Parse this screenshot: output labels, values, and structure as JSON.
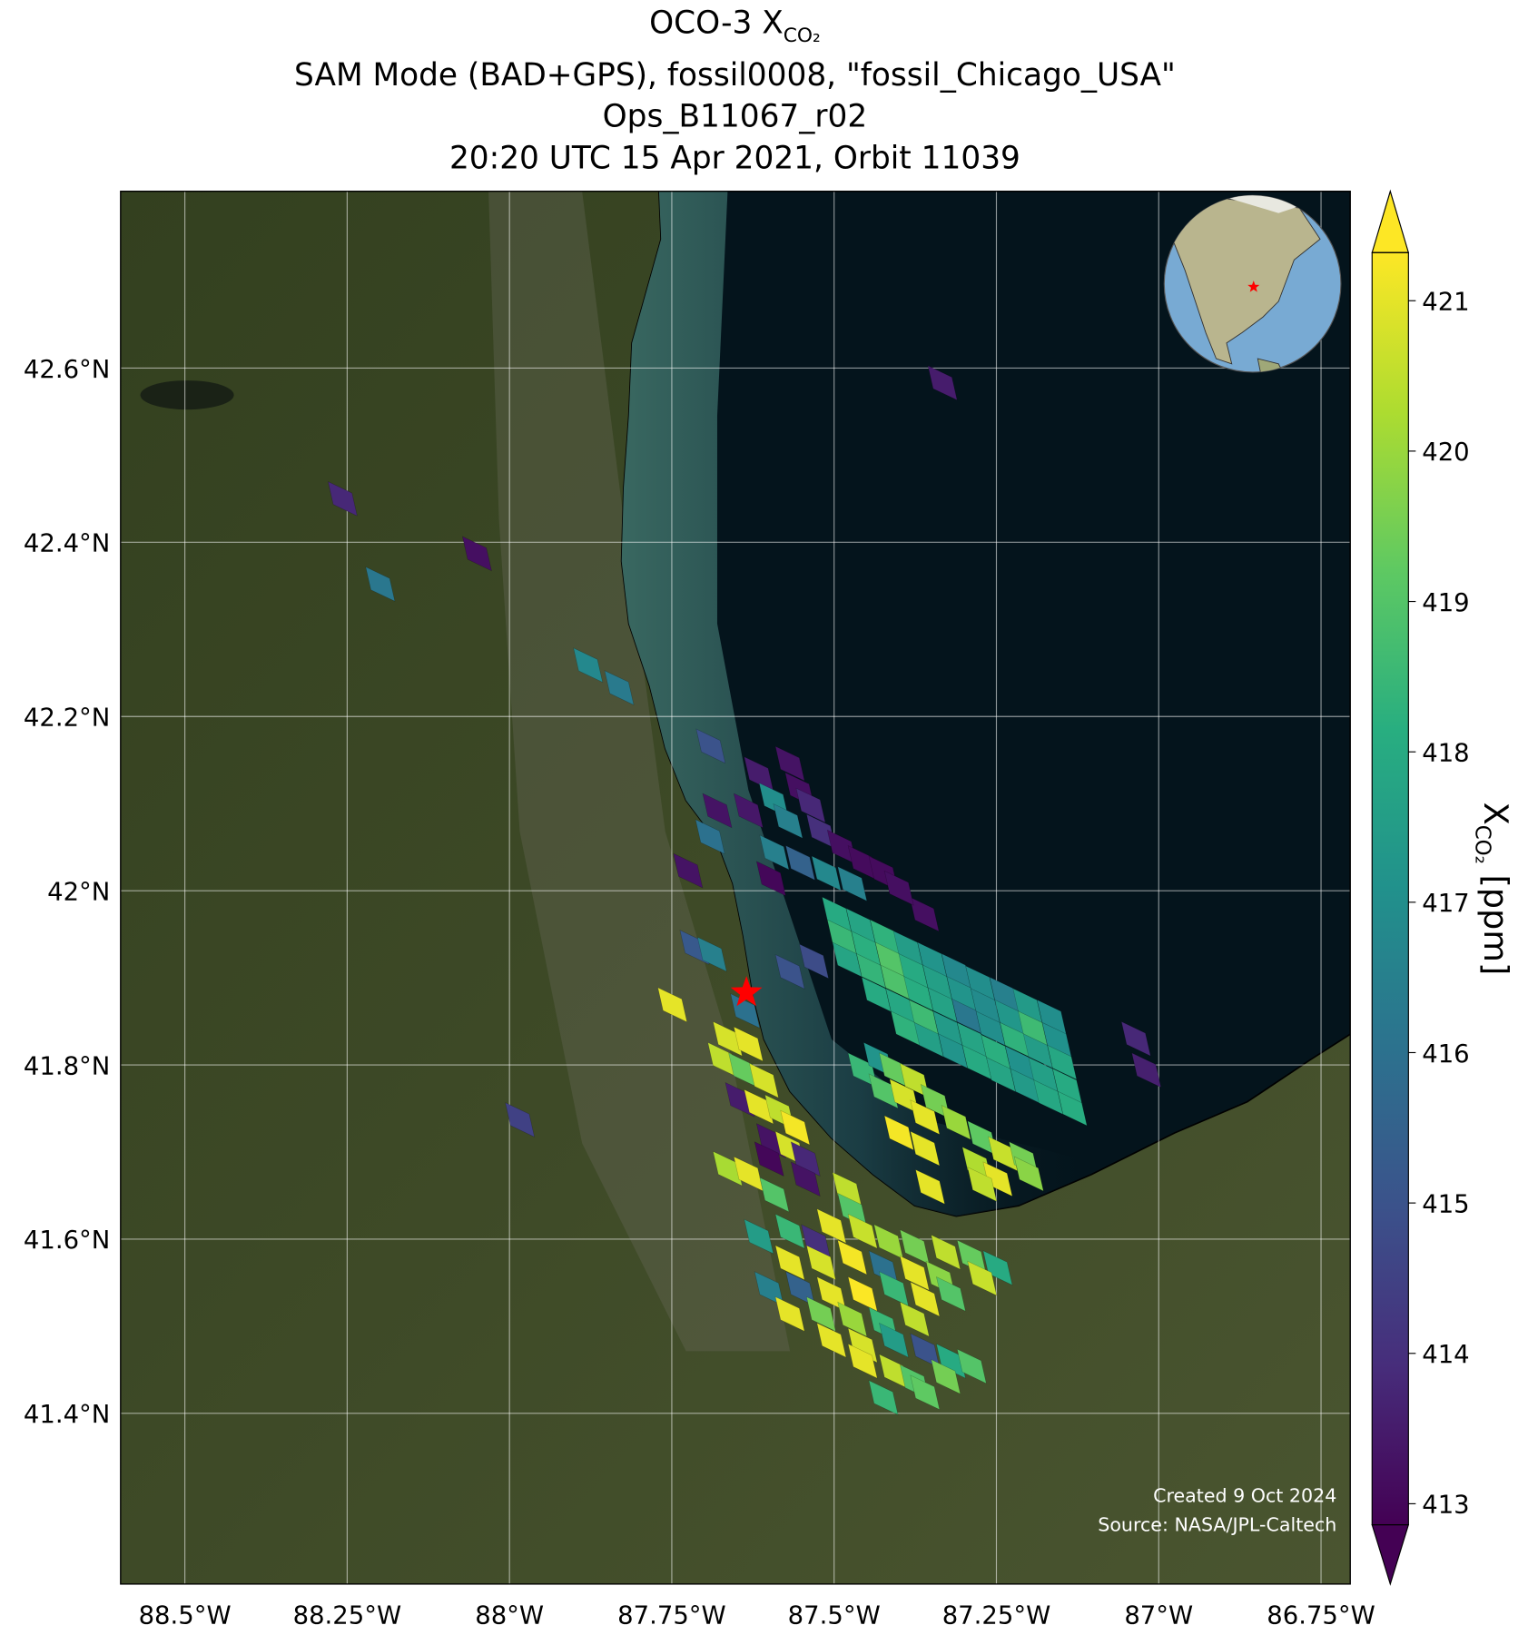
{
  "chart_data": {
    "type": "map",
    "title": {
      "prefix": "OCO-3 X",
      "subscript": "CO₂"
    },
    "subtitle_lines": [
      "SAM Mode (BAD+GPS), fossil0008, \"fossil_Chicago_USA\"",
      "Ops_B11067_r02",
      "20:20 UTC 15 Apr 2021, Orbit 11039"
    ],
    "credits": [
      "Created 9 Oct 2024",
      "Source: NASA/JPL-Caltech"
    ],
    "colorbar_label": {
      "prefix": "X",
      "subscript": "CO₂",
      "suffix": " [ppm]"
    },
    "colormap": "viridis",
    "xlim": [
      -88.599,
      -86.705
    ],
    "ylim": [
      41.204,
      42.803
    ],
    "clim": [
      412.86,
      421.32
    ],
    "xticks": [
      {
        "value": -88.5,
        "label": "88.5°W"
      },
      {
        "value": -88.25,
        "label": "88.25°W"
      },
      {
        "value": -88,
        "label": "88°W"
      },
      {
        "value": -87.75,
        "label": "87.75°W"
      },
      {
        "value": -87.5,
        "label": "87.5°W"
      },
      {
        "value": -87.25,
        "label": "87.25°W"
      },
      {
        "value": -87,
        "label": "87°W"
      },
      {
        "value": -86.75,
        "label": "86.75°W"
      }
    ],
    "yticks": [
      {
        "value": 41.4,
        "label": "41.4°N"
      },
      {
        "value": 41.6,
        "label": "41.6°N"
      },
      {
        "value": 41.8,
        "label": "41.8°N"
      },
      {
        "value": 42,
        "label": "42°N"
      },
      {
        "value": 42.2,
        "label": "42.2°N"
      },
      {
        "value": 42.4,
        "label": "42.4°N"
      },
      {
        "value": 42.6,
        "label": "42.6°N"
      }
    ],
    "cticks": [
      413,
      414,
      415,
      416,
      417,
      418,
      419,
      420,
      421
    ],
    "grid": true,
    "target": {
      "lon": -87.635,
      "lat": 41.883,
      "color": "#ff0000"
    },
    "lon": [
      -87.333,
      -88.257,
      -88.05,
      -88.199,
      -87.879,
      -87.831,
      -87.69,
      -87.68,
      -87.691,
      -87.725,
      -87.715,
      -87.688,
      -87.637,
      -87.749,
      -87.984,
      -87.361,
      -87.035,
      -87.019,
      -87.568,
      -87.531,
      -87.568,
      -87.616,
      -87.553,
      -87.593,
      -87.536,
      -87.632,
      -87.571,
      -87.52,
      -87.592,
      -87.488,
      -87.456,
      -87.424,
      -87.552,
      -87.512,
      -87.597,
      -87.472,
      -87.4,
      -87.496,
      -87.459,
      -87.422,
      -87.386,
      -87.349,
      -87.312,
      -87.275,
      -87.238,
      -87.202,
      -87.165,
      -87.488,
      -87.451,
      -87.414,
      -87.378,
      -87.341,
      -87.304,
      -87.267,
      -87.23,
      -87.194,
      -87.157,
      -87.48,
      -87.443,
      -87.406,
      -87.37,
      -87.333,
      -87.296,
      -87.259,
      -87.222,
      -87.186,
      -87.149,
      -87.435,
      -87.398,
      -87.362,
      -87.325,
      -87.288,
      -87.251,
      -87.214,
      -87.178,
      -87.141,
      -87.39,
      -87.354,
      -87.317,
      -87.28,
      -87.243,
      -87.206,
      -87.17,
      -87.133,
      -87.456,
      -87.432,
      -87.408,
      -87.376,
      -87.424,
      -87.392,
      -87.344,
      -87.36,
      -87.312,
      -87.272,
      -87.4,
      -87.36,
      -87.24,
      -87.208,
      -87.28,
      -87.248,
      -87.2,
      -87.352,
      -87.272,
      -87.664,
      -87.632,
      -87.672,
      -87.64,
      -87.608,
      -87.645,
      -87.616,
      -87.584,
      -87.56,
      -87.597,
      -87.568,
      -87.544,
      -87.6,
      -87.664,
      -87.632,
      -87.544,
      -87.592,
      -87.48,
      -87.472,
      -87.504,
      -87.456,
      -87.616,
      -87.568,
      -87.528,
      -87.416,
      -87.376,
      -87.328,
      -87.288,
      -87.248,
      -87.568,
      -87.52,
      -87.472,
      -87.424,
      -87.376,
      -87.336,
      -87.272,
      -87.6,
      -87.552,
      -87.504,
      -87.456,
      -87.408,
      -87.36,
      -87.32,
      -87.568,
      -87.52,
      -87.472,
      -87.424,
      -87.376,
      -87.504,
      -87.456,
      -87.408,
      -87.36,
      -87.32,
      -87.456,
      -87.408,
      -87.376,
      -87.328,
      -87.424,
      -87.36,
      -87.288
    ],
    "lat": [
      42.583,
      42.45,
      42.387,
      42.352,
      42.259,
      42.233,
      42.166,
      42.092,
      42.062,
      42.023,
      41.935,
      41.927,
      41.862,
      41.869,
      41.737,
      41.973,
      41.83,
      41.794,
      41.907,
      41.919,
      42.146,
      42.134,
      42.116,
      42.104,
      42.098,
      42.092,
      42.08,
      42.068,
      42.044,
      42.05,
      42.032,
      42.02,
      42.032,
      42.02,
      42.014,
      42.008,
      42.003,
      41.973,
      41.96,
      41.947,
      41.934,
      41.921,
      41.908,
      41.894,
      41.881,
      41.868,
      41.855,
      41.947,
      41.934,
      41.921,
      41.908,
      41.895,
      41.882,
      41.868,
      41.855,
      41.842,
      41.829,
      41.921,
      41.908,
      41.895,
      41.882,
      41.869,
      41.856,
      41.842,
      41.829,
      41.816,
      41.803,
      41.881,
      41.868,
      41.855,
      41.842,
      41.829,
      41.815,
      41.802,
      41.789,
      41.776,
      41.842,
      41.829,
      41.816,
      41.803,
      41.789,
      41.776,
      41.763,
      41.75,
      41.794,
      41.806,
      41.794,
      41.782,
      41.77,
      41.764,
      41.758,
      41.74,
      41.734,
      41.716,
      41.722,
      41.704,
      41.698,
      41.692,
      41.686,
      41.669,
      41.675,
      41.66,
      41.663,
      41.83,
      41.824,
      41.806,
      41.794,
      41.782,
      41.76,
      41.752,
      41.746,
      41.728,
      41.713,
      41.704,
      41.692,
      41.692,
      41.681,
      41.675,
      41.669,
      41.651,
      41.657,
      41.633,
      41.615,
      41.609,
      41.603,
      41.609,
      41.597,
      41.597,
      41.591,
      41.585,
      41.579,
      41.567,
      41.573,
      41.573,
      41.579,
      41.567,
      41.561,
      41.555,
      41.555,
      41.543,
      41.543,
      41.537,
      41.537,
      41.543,
      41.531,
      41.537,
      41.514,
      41.514,
      41.508,
      41.502,
      41.508,
      41.484,
      41.478,
      41.484,
      41.472,
      41.46,
      41.46,
      41.448,
      41.436,
      41.442,
      41.418,
      41.424,
      41.454
    ],
    "values": [
      413.5,
      413.8,
      413.2,
      416.2,
      416.8,
      416.3,
      415.0,
      413.3,
      416.0,
      413.3,
      415.2,
      416.5,
      416.0,
      421.0,
      414.5,
      413.2,
      413.8,
      413.6,
      415.0,
      414.8,
      413.3,
      413.5,
      413.2,
      417.0,
      413.8,
      413.4,
      416.5,
      414.0,
      416.5,
      413.2,
      413.1,
      413.1,
      415.5,
      416.8,
      413.0,
      416.5,
      413.2,
      418.0,
      417.8,
      418.3,
      417.5,
      417.2,
      416.8,
      417.0,
      416.5,
      417.4,
      417.0,
      418.5,
      418.2,
      419.0,
      418.0,
      417.6,
      417.2,
      416.9,
      417.3,
      418.6,
      417.1,
      417.8,
      418.4,
      418.9,
      418.1,
      417.7,
      416.2,
      417.0,
      418.3,
      417.5,
      417.9,
      418.0,
      417.9,
      418.6,
      417.4,
      417.8,
      418.2,
      417.1,
      417.6,
      418.0,
      418.3,
      417.6,
      417.2,
      418.0,
      417.8,
      417.4,
      417.9,
      418.1,
      418.5,
      417.2,
      419.3,
      420.5,
      419.0,
      420.8,
      419.5,
      421.0,
      420.0,
      419.2,
      421.2,
      421.0,
      420.6,
      419.5,
      420.3,
      421.0,
      419.8,
      421.0,
      420.5,
      420.8,
      421.0,
      420.5,
      419.3,
      420.8,
      413.5,
      421.0,
      420.5,
      421.2,
      413.3,
      420.8,
      413.8,
      413.0,
      420.2,
      421.0,
      413.3,
      419.0,
      420.5,
      419.0,
      421.0,
      420.6,
      417.5,
      418.5,
      414.0,
      420.0,
      419.5,
      420.5,
      419.3,
      418.0,
      421.0,
      420.8,
      421.2,
      416.0,
      421.0,
      419.8,
      420.6,
      416.5,
      415.5,
      421.0,
      421.3,
      418.5,
      421.0,
      419.0,
      421.0,
      419.5,
      420.0,
      418.5,
      420.5,
      421.0,
      420.8,
      417.5,
      415.0,
      418.0,
      421.0,
      420.5,
      419.0,
      419.5,
      418.5,
      419.2,
      419.0
    ]
  }
}
